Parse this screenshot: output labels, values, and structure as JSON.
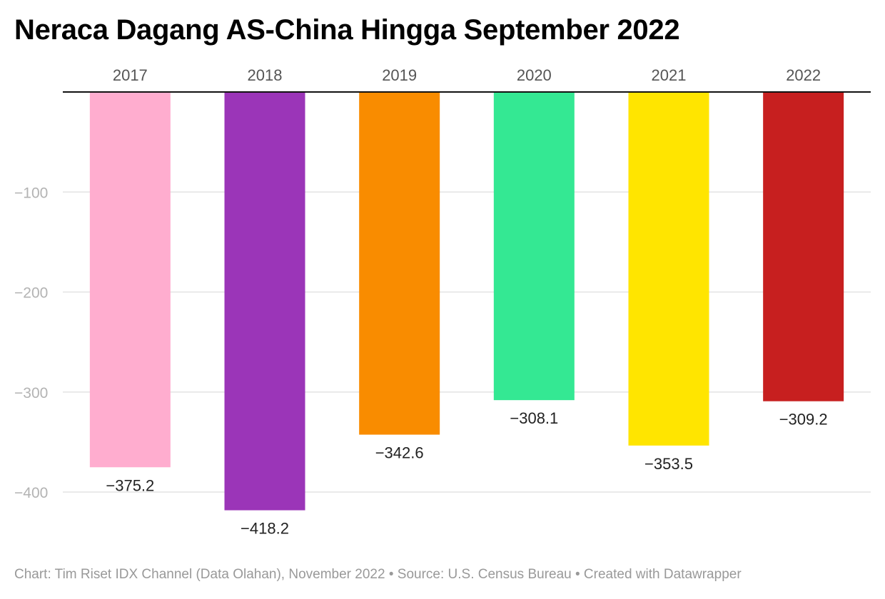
{
  "title": "Neraca Dagang AS-China Hingga September 2022",
  "footer": {
    "text": "Chart: Tim Riset IDX Channel (Data Olahan), November 2022 • Source: U.S. Census Bureau • Created with Datawrapper"
  },
  "chart_data": {
    "type": "bar",
    "orientation": "vertical",
    "categories": [
      "2017",
      "2018",
      "2019",
      "2020",
      "2021",
      "2022"
    ],
    "values": [
      -375.2,
      -418.2,
      -342.6,
      -308.1,
      -353.5,
      -309.2
    ],
    "value_labels": [
      "−375.2",
      "−418.2",
      "−342.6",
      "−308.1",
      "−353.5",
      "−309.2"
    ],
    "colors": [
      "#ffadcf",
      "#9b35b8",
      "#f98c00",
      "#34e893",
      "#ffe500",
      "#c71f1f"
    ],
    "ylim": [
      -420,
      0
    ],
    "yticks": [
      -100,
      -200,
      -300,
      -400
    ],
    "ytick_labels": [
      "−100",
      "−200",
      "−300",
      "−400"
    ],
    "xaxis_position": "top",
    "grid": true,
    "legend": "none",
    "xlabel": "",
    "ylabel": ""
  }
}
